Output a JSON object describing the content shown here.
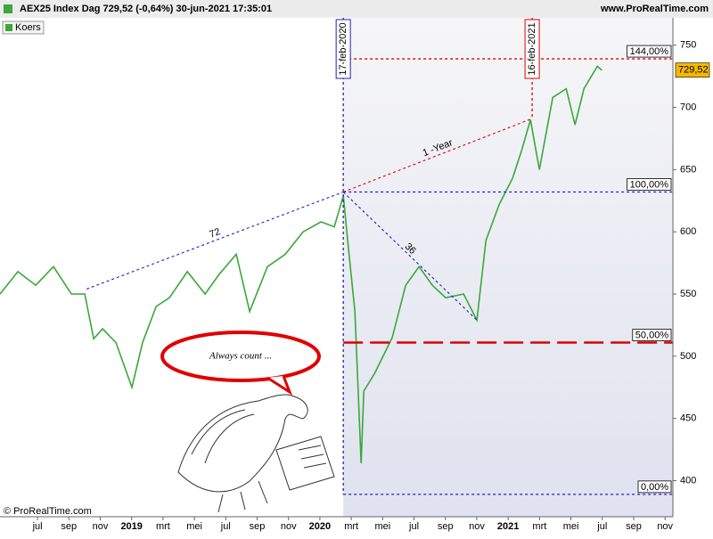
{
  "chart_data": {
    "type": "line",
    "title": "AEX25 Index Dag 729,52 (-0,64%) 30-jun-2021 17:35:01",
    "source": "www.ProRealTime.com",
    "copyright": "© ProRealTime.com",
    "legend": "Koers",
    "last_label": "729,52",
    "annotation": "Always count ...",
    "color": "#3aa83a",
    "x": [
      3.61,
      4.75,
      5.89,
      7.02,
      8.16,
      9.01,
      9.58,
      10.15,
      11.0,
      12.02,
      12.7,
      13.56,
      14.41,
      15.55,
      16.68,
      17.53,
      18.67,
      19.52,
      20.66,
      21.8,
      22.93,
      24.07,
      24.92,
      25.49,
      25.77,
      26.23,
      26.63,
      26.8,
      27.48,
      28.61,
      29.47,
      30.32,
      31.17,
      32.02,
      33.16,
      34.01,
      34.58,
      35.43,
      36.28,
      36.85,
      37.42,
      37.99,
      38.84,
      39.7,
      40.26,
      40.83,
      41.68,
      41.97
    ],
    "values": [
      550,
      568,
      557,
      572,
      550,
      550,
      514,
      522,
      511,
      475,
      511,
      540,
      547,
      568,
      550,
      565,
      582,
      536,
      572,
      582,
      600,
      608,
      604,
      629,
      593,
      536,
      414,
      472,
      486,
      515,
      557,
      572,
      557,
      547,
      550,
      529,
      593,
      622,
      643,
      665,
      690,
      650,
      708,
      715,
      686,
      715,
      733,
      730
    ],
    "xlim": [
      3.61,
      46.5
    ],
    "ylim": [
      371,
      772
    ],
    "yticks": [
      400,
      450,
      500,
      550,
      600,
      650,
      700,
      750
    ],
    "xticks": [
      {
        "value": 6,
        "label": "jul"
      },
      {
        "value": 8,
        "label": "sep"
      },
      {
        "value": 10,
        "label": "nov"
      },
      {
        "value": 12,
        "label": "2019"
      },
      {
        "value": 14,
        "label": "mrt"
      },
      {
        "value": 16,
        "label": "mei"
      },
      {
        "value": 18,
        "label": "jul"
      },
      {
        "value": 20,
        "label": "sep"
      },
      {
        "value": 22,
        "label": "nov"
      },
      {
        "value": 24,
        "label": "2020"
      },
      {
        "value": 26,
        "label": "mrt"
      },
      {
        "value": 28,
        "label": "mei"
      },
      {
        "value": 30,
        "label": "jul"
      },
      {
        "value": 32,
        "label": "sep"
      },
      {
        "value": 34,
        "label": "nov"
      },
      {
        "value": 36,
        "label": "2021"
      },
      {
        "value": 38,
        "label": "mrt"
      },
      {
        "value": 40,
        "label": "mei"
      },
      {
        "value": 42,
        "label": "jul"
      },
      {
        "value": 44,
        "label": "sep"
      },
      {
        "value": 46,
        "label": "nov"
      }
    ],
    "levels": [
      {
        "label": "144,00%",
        "price": 739,
        "color": "#e00000",
        "style": "dotted"
      },
      {
        "label": "100,00%",
        "price": 632,
        "color": "#2020c0",
        "style": "dotted"
      },
      {
        "label": "50,00%",
        "price": 511,
        "color": "#e00000",
        "style": "dashed"
      },
      {
        "label": "0,00%",
        "price": 389,
        "color": "#2020c0",
        "style": "dotted"
      }
    ],
    "verticals": [
      {
        "label": "17-feb-2020",
        "x": 25.49,
        "color": "#2020c0"
      },
      {
        "label": "16-feb-2021",
        "x": 37.53,
        "color": "#e00000"
      }
    ],
    "trendlines": [
      {
        "label": "72",
        "x": [
          9.13,
          25.49
        ],
        "y": [
          554,
          632
        ],
        "color": "#2020c0"
      },
      {
        "label": "36",
        "x": [
          25.49,
          34.01
        ],
        "y": [
          632,
          529
        ],
        "color": "#2020c0"
      },
      {
        "label": "1 -Year",
        "x": [
          25.49,
          37.53
        ],
        "y": [
          632,
          691
        ],
        "color": "#e00000"
      }
    ]
  }
}
